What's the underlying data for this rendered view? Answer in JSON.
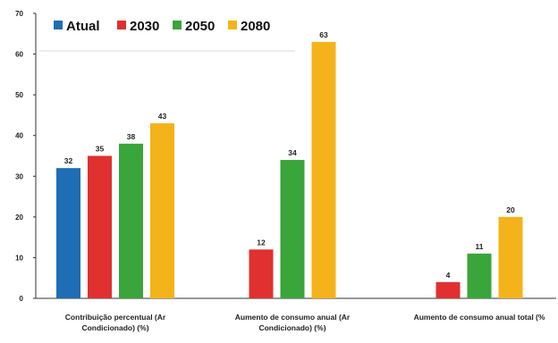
{
  "chart_data": {
    "type": "bar",
    "title": "",
    "xlabel": "",
    "ylabel": "",
    "ylim": [
      0,
      70
    ],
    "yticks": [
      0,
      10,
      20,
      30,
      40,
      50,
      60,
      70
    ],
    "grid": false,
    "legend_position": "top-left",
    "categories": [
      [
        "Contribuição percentual (Ar",
        "Condicionado) (%)"
      ],
      [
        "Aumento de consumo anual (Ar",
        "Condicionado) (%)"
      ],
      [
        "Aumento de consumo anual total (%"
      ]
    ],
    "series": [
      {
        "name": "Atual",
        "color": "#1f6db5",
        "values": [
          32,
          null,
          null
        ]
      },
      {
        "name": "2030",
        "color": "#e03030",
        "values": [
          35,
          12,
          4
        ]
      },
      {
        "name": "2050",
        "color": "#3aa53a",
        "values": [
          38,
          34,
          11
        ]
      },
      {
        "name": "2080",
        "color": "#f4b31a",
        "values": [
          43,
          63,
          20
        ]
      }
    ]
  }
}
